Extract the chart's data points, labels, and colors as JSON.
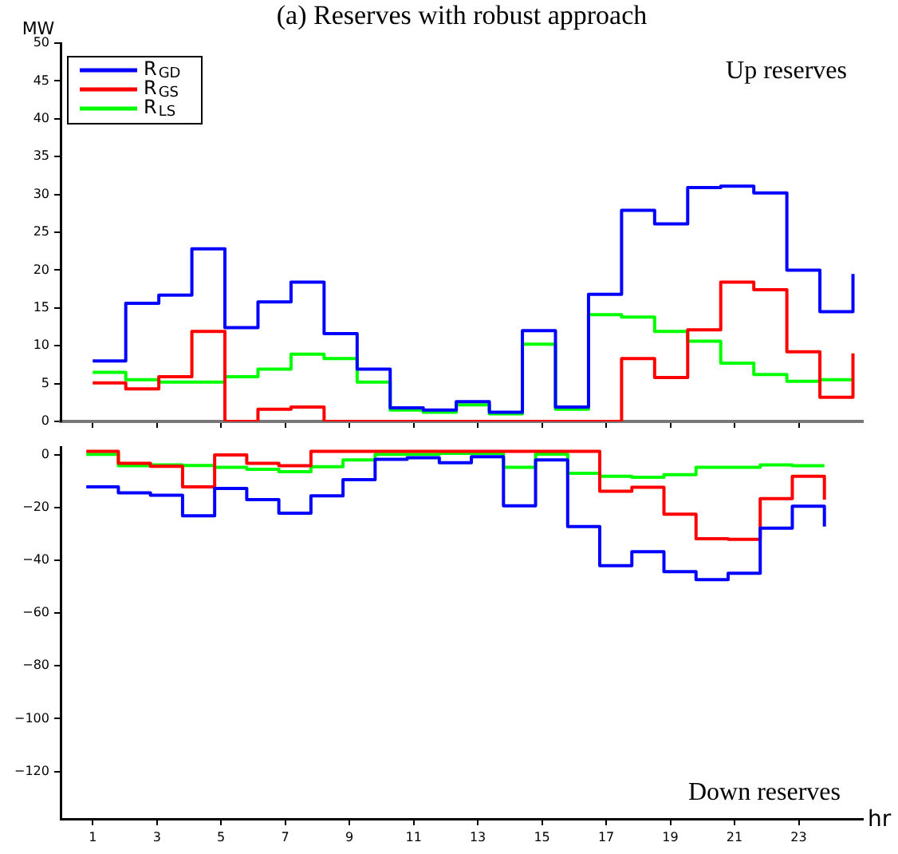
{
  "chart_data": [
    {
      "type": "step",
      "title": "(a) Reserves with robust approach",
      "ylabel": "MW",
      "annotations": [
        "Up reserves"
      ],
      "legend": "top left",
      "tick_labels": "y",
      "grid": false,
      "xlim": [
        0,
        25
      ],
      "xticks": [
        1,
        3,
        5,
        7,
        9,
        11,
        13,
        15,
        17,
        19,
        21,
        23
      ],
      "ylim": [
        0,
        50
      ],
      "yticks": [
        0,
        5,
        10,
        15,
        20,
        25,
        30,
        35,
        40,
        45,
        50
      ],
      "series": [
        {
          "name": "R$_{GD}$",
          "color": "#0000ff",
          "x": [
            1,
            2.03,
            3.06,
            4.09,
            5.12,
            6.15,
            7.18,
            8.21,
            9.24,
            10.27,
            11.3,
            12.33,
            13.36,
            14.39,
            15.42,
            16.45,
            17.48,
            18.51,
            19.54,
            20.57,
            21.6,
            22.63,
            23.66,
            24.69
          ],
          "values": [
            8,
            15.6,
            16.7,
            22.8,
            12.4,
            15.8,
            18.4,
            11.6,
            6.9,
            1.8,
            1.5,
            2.6,
            1.2,
            12,
            1.9,
            16.8,
            27.9,
            26.1,
            30.9,
            31.1,
            30.2,
            20,
            14.5,
            19.5
          ]
        },
        {
          "name": "R$_{GS}$",
          "color": "#ff0000",
          "x": [
            1,
            2.03,
            3.06,
            4.09,
            5.12,
            6.15,
            7.18,
            8.21,
            9.24,
            10.27,
            11.3,
            12.33,
            13.36,
            14.39,
            15.42,
            16.45,
            17.48,
            18.51,
            19.54,
            20.57,
            21.6,
            22.63,
            23.66,
            24.69
          ],
          "values": [
            5.1,
            4.3,
            5.9,
            11.9,
            0,
            1.6,
            1.9,
            0,
            0,
            0,
            0,
            0,
            0,
            0,
            0,
            0,
            8.3,
            5.8,
            12.1,
            18.4,
            17.4,
            9.2,
            3.2,
            9
          ]
        },
        {
          "name": "R$_{LS}$",
          "color": "#00ff00",
          "x": [
            1,
            2.03,
            3.06,
            4.09,
            5.12,
            6.15,
            7.18,
            8.21,
            9.24,
            10.27,
            11.3,
            12.33,
            13.36,
            14.39,
            15.42,
            16.45,
            17.48,
            18.51,
            19.54,
            20.57,
            21.6,
            22.63,
            23.66,
            24.69
          ],
          "values": [
            6.5,
            5.5,
            5.2,
            5.2,
            5.9,
            6.9,
            8.9,
            8.3,
            5.2,
            1.5,
            1.2,
            2.2,
            1,
            10.2,
            1.6,
            14.1,
            13.8,
            11.9,
            10.6,
            7.7,
            6.2,
            5.3,
            5.5,
            5.5
          ]
        }
      ]
    },
    {
      "type": "step",
      "xlabel": "hr",
      "annotations": [
        "Down reserves"
      ],
      "grid": false,
      "xlim": [
        0,
        25
      ],
      "xticks": [
        1,
        3,
        5,
        7,
        9,
        11,
        13,
        15,
        17,
        19,
        21,
        23
      ],
      "ylim": [
        -138,
        3
      ],
      "yticks": [
        -120,
        -100,
        -80,
        -60,
        -40,
        -20,
        0
      ],
      "series": [
        {
          "color": "#0000ff",
          "x": [
            0.8,
            1.8,
            2.8,
            3.8,
            4.8,
            5.8,
            6.8,
            7.8,
            8.8,
            9.8,
            10.8,
            11.8,
            12.8,
            13.8,
            14.8,
            15.8,
            16.8,
            17.8,
            18.8,
            19.8,
            20.8,
            21.8,
            22.8,
            23.8
          ],
          "values": [
            -12.1,
            -14.4,
            -15.3,
            -23.1,
            -12.7,
            -17,
            -22.1,
            -15.5,
            -9.4,
            -1.7,
            -1.1,
            -3,
            -0.7,
            -19.3,
            -1.9,
            -27.2,
            -42,
            -36.7,
            -44.3,
            -47.3,
            -44.9,
            -27.8,
            -19.5,
            -27.2
          ]
        },
        {
          "color": "#ff0000",
          "x": [
            0.8,
            1.8,
            2.8,
            3.8,
            4.8,
            5.8,
            6.8,
            7.8,
            8.8,
            9.8,
            10.8,
            11.8,
            12.8,
            13.8,
            14.8,
            15.8,
            16.8,
            17.8,
            18.8,
            19.8,
            20.8,
            21.8,
            22.8,
            23.8
          ],
          "values": [
            1.3,
            -3.2,
            -4.3,
            -12.1,
            0,
            -3.2,
            -4.1,
            1.3,
            1.3,
            1.3,
            1.3,
            1.3,
            1.3,
            1.3,
            1.3,
            1.3,
            -13.8,
            -12.3,
            -22.5,
            -31.8,
            -32,
            -16.6,
            -8.1,
            -17
          ]
        },
        {
          "color": "#00ff00",
          "x": [
            0.8,
            1.8,
            2.8,
            3.8,
            4.8,
            5.8,
            6.8,
            7.8,
            8.8,
            9.8,
            10.8,
            11.8,
            12.8,
            13.8,
            14.8,
            15.8,
            16.8,
            17.8,
            18.8,
            19.8,
            20.8,
            21.8,
            22.8,
            23.8
          ],
          "values": [
            0.2,
            -4.1,
            -3.8,
            -4,
            -4.7,
            -5.5,
            -6.4,
            -4.5,
            -1.9,
            0.2,
            0.2,
            0.6,
            0.6,
            -4.7,
            0.3,
            -7,
            -8.1,
            -8.5,
            -7.5,
            -4.7,
            -4.7,
            -3.8,
            -4.1,
            -4.1
          ]
        }
      ]
    }
  ]
}
